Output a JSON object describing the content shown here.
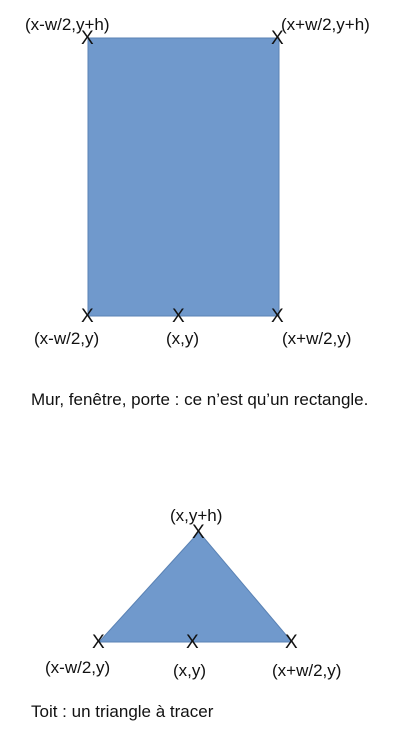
{
  "rectangle": {
    "shape": "rectangle",
    "fill": "#7099cc",
    "marker": "X",
    "labels": {
      "top_left": "(x-w/2,y+h)",
      "top_right": "(x+w/2,y+h)",
      "bottom_left": "(x-w/2,y)",
      "bottom_center": "(x,y)",
      "bottom_right": "(x+w/2,y)"
    },
    "caption": "Mur, fenêtre, porte : ce n’est qu’un rectangle."
  },
  "triangle": {
    "shape": "triangle",
    "fill": "#7099cc",
    "marker": "X",
    "labels": {
      "apex": "(x,y+h)",
      "bottom_left": "(x-w/2,y)",
      "bottom_center": "(x,y)",
      "bottom_right": "(x+w/2,y)"
    },
    "caption": "Toit : un triangle à tracer"
  }
}
